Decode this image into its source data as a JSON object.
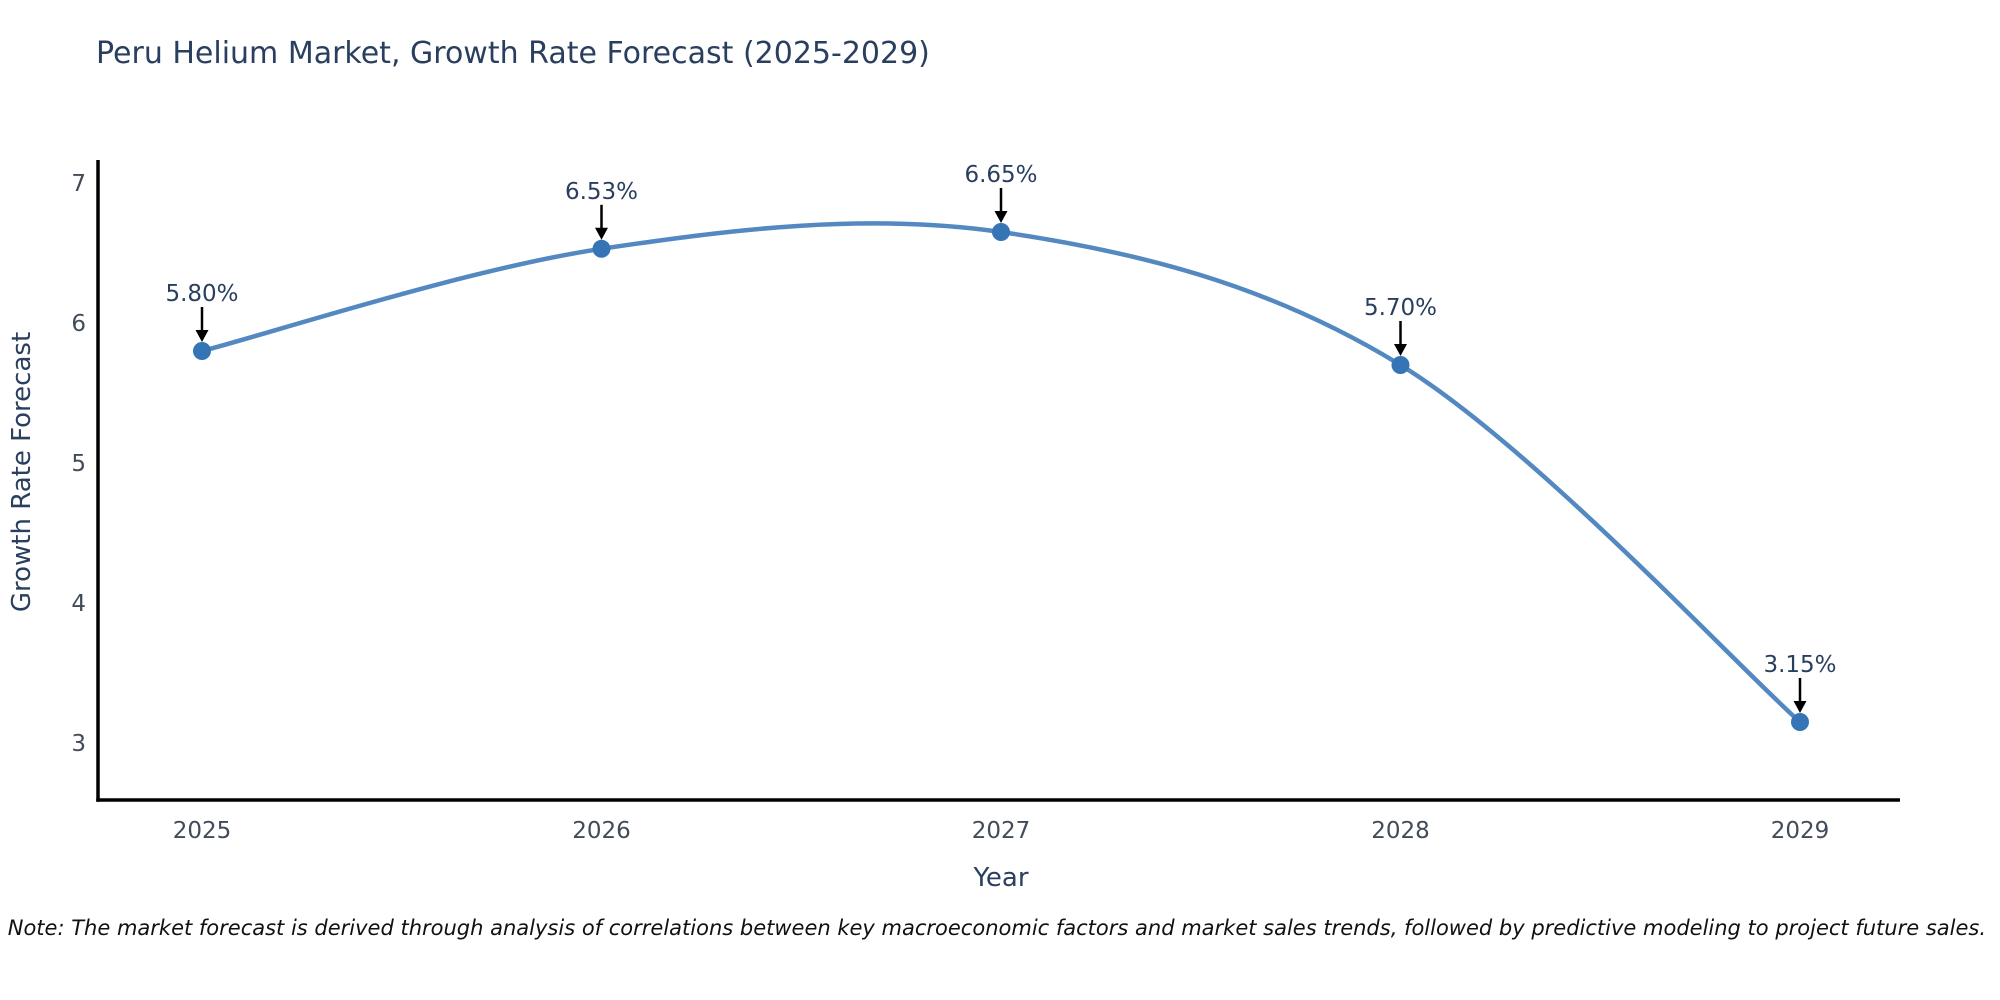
{
  "note": "Note: The market forecast is derived through analysis of correlations between key macroeconomic factors and market sales trends, followed by predictive modeling to project future sales.",
  "chart_data": {
    "type": "line",
    "title": "Peru Helium Market, Growth Rate Forecast (2025-2029)",
    "xlabel": "Year",
    "ylabel": "Growth Rate Forecast",
    "categories": [
      "2025",
      "2026",
      "2027",
      "2028",
      "2029"
    ],
    "series": [
      {
        "name": "Growth Rate Forecast",
        "values": [
          5.8,
          6.53,
          6.65,
          5.7,
          3.15
        ],
        "point_labels": [
          "5.80%",
          "6.53%",
          "6.65%",
          "5.70%",
          "3.15%"
        ]
      }
    ],
    "ylim": [
      3,
      7
    ],
    "yticks": [
      3,
      4,
      5,
      6,
      7
    ],
    "line_shape": "spline",
    "grid": false,
    "legend_position": "none",
    "annotations_have_arrows": true,
    "colors": {
      "line": "#5389c0",
      "marker": "#3575b5",
      "axis_line": "#000000",
      "title_text": "#2a3f5f",
      "axis_title_text": "#2a3f5f",
      "tick_text": "#424c59",
      "annotation_text": "#2a3f5f",
      "arrow": "#000000",
      "note_text": "#111111",
      "background": "#ffffff"
    }
  }
}
